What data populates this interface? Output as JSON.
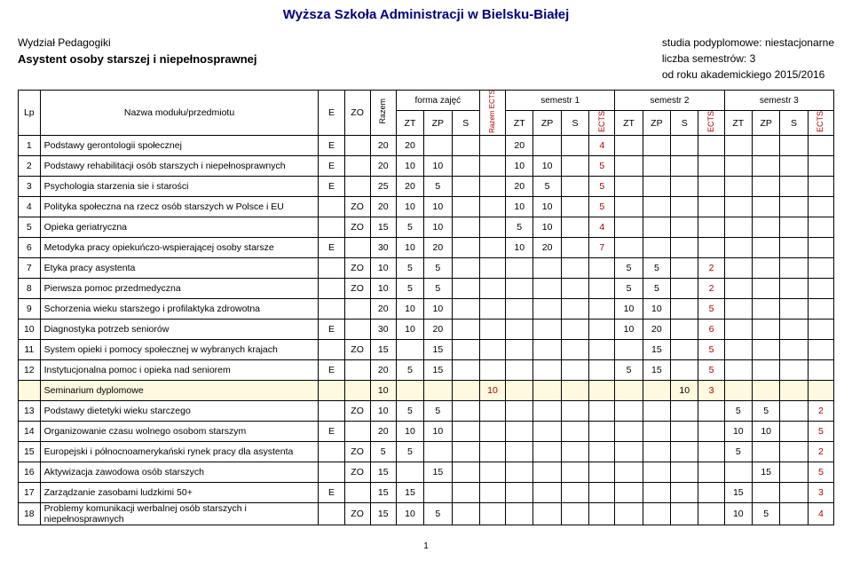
{
  "title": "Wyższa Szkoła Administracji w Bielsku-Białej",
  "meta_left": {
    "dept": "Wydział Pedagogiki",
    "program": "Asystent osoby starszej i niepełnosprawnej"
  },
  "meta_right": {
    "l1": "studia podyplomowe: niestacjonarne",
    "l2": "liczba semestrów: 3",
    "l3": "od roku akademickiego 2015/2016"
  },
  "head": {
    "lp": "Lp",
    "name": "Nazwa modułu/przedmiotu",
    "e": "E",
    "zo": "ZO",
    "razem": "Razem",
    "forma": "forma zajęć",
    "zt": "ZT",
    "zp": "ZP",
    "s": "S",
    "razem_ects": "Razem ECTS",
    "sem1": "semestr 1",
    "sem2": "semestr 2",
    "sem3": "semestr 3",
    "ects": "ECTS"
  },
  "footer_page": "1",
  "cols": {
    "lp": 22,
    "name": 280,
    "e": 26,
    "zo": 26,
    "razem": 26,
    "zt": 28,
    "zp": 28,
    "s": 28,
    "razem_ects": 26,
    "szt": 28,
    "szp": 28,
    "ss": 28,
    "sects": 26
  },
  "rows": [
    {
      "n": "1",
      "name": "Podstawy gerontologii społecznej",
      "e": "E",
      "zo": "",
      "raz": "20",
      "zt": "20",
      "zp": "",
      "s": "",
      "rects": "",
      "s1": [
        "20",
        "",
        "",
        "4"
      ],
      "s2": [
        "",
        "",
        "",
        ""
      ],
      "s3": [
        "",
        "",
        "",
        ""
      ],
      "y": 0
    },
    {
      "n": "2",
      "name": "Podstawy rehabilitacji osób starszych i niepełnosprawnych",
      "e": "E",
      "zo": "",
      "raz": "20",
      "zt": "10",
      "zp": "10",
      "s": "",
      "rects": "",
      "s1": [
        "10",
        "10",
        "",
        "5"
      ],
      "s2": [
        "",
        "",
        "",
        ""
      ],
      "s3": [
        "",
        "",
        "",
        ""
      ],
      "y": 0
    },
    {
      "n": "3",
      "name": "Psychologia starzenia sie i starości",
      "e": "E",
      "zo": "",
      "raz": "25",
      "zt": "20",
      "zp": "5",
      "s": "",
      "rects": "",
      "s1": [
        "20",
        "5",
        "",
        "5"
      ],
      "s2": [
        "",
        "",
        "",
        ""
      ],
      "s3": [
        "",
        "",
        "",
        ""
      ],
      "y": 0
    },
    {
      "n": "4",
      "name": "Polityka społeczna na rzecz osób starszych w Polsce i EU",
      "e": "",
      "zo": "ZO",
      "raz": "20",
      "zt": "10",
      "zp": "10",
      "s": "",
      "rects": "",
      "s1": [
        "10",
        "10",
        "",
        "5"
      ],
      "s2": [
        "",
        "",
        "",
        ""
      ],
      "s3": [
        "",
        "",
        "",
        ""
      ],
      "y": 0
    },
    {
      "n": "5",
      "name": "Opieka geriatryczna",
      "e": "",
      "zo": "ZO",
      "raz": "15",
      "zt": "5",
      "zp": "10",
      "s": "",
      "rects": "",
      "s1": [
        "5",
        "10",
        "",
        "4"
      ],
      "s2": [
        "",
        "",
        "",
        ""
      ],
      "s3": [
        "",
        "",
        "",
        ""
      ],
      "y": 0
    },
    {
      "n": "6",
      "name": "Metodyka pracy opiekuńczo-wspierającej osoby starsze",
      "e": "E",
      "zo": "",
      "raz": "30",
      "zt": "10",
      "zp": "20",
      "s": "",
      "rects": "",
      "s1": [
        "10",
        "20",
        "",
        "7"
      ],
      "s2": [
        "",
        "",
        "",
        ""
      ],
      "s3": [
        "",
        "",
        "",
        ""
      ],
      "y": 0
    },
    {
      "n": "7",
      "name": "Etyka pracy asystenta",
      "e": "",
      "zo": "ZO",
      "raz": "10",
      "zt": "5",
      "zp": "5",
      "s": "",
      "rects": "",
      "s1": [
        "",
        "",
        "",
        ""
      ],
      "s2": [
        "5",
        "5",
        "",
        "2"
      ],
      "s3": [
        "",
        "",
        "",
        ""
      ],
      "y": 0
    },
    {
      "n": "8",
      "name": "Pierwsza pomoc przedmedyczna",
      "e": "",
      "zo": "ZO",
      "raz": "10",
      "zt": "5",
      "zp": "5",
      "s": "",
      "rects": "",
      "s1": [
        "",
        "",
        "",
        ""
      ],
      "s2": [
        "5",
        "5",
        "",
        "2"
      ],
      "s3": [
        "",
        "",
        "",
        ""
      ],
      "y": 0
    },
    {
      "n": "9",
      "name": "Schorzenia wieku starszego i profilaktyka zdrowotna",
      "e": "",
      "zo": "",
      "raz": "20",
      "zt": "10",
      "zp": "10",
      "s": "",
      "rects": "",
      "s1": [
        "",
        "",
        "",
        ""
      ],
      "s2": [
        "10",
        "10",
        "",
        "5"
      ],
      "s3": [
        "",
        "",
        "",
        ""
      ],
      "y": 0
    },
    {
      "n": "10",
      "name": "Diagnostyka potrzeb seniorów",
      "e": "E",
      "zo": "",
      "raz": "30",
      "zt": "10",
      "zp": "20",
      "s": "",
      "rects": "",
      "s1": [
        "",
        "",
        "",
        ""
      ],
      "s2": [
        "10",
        "20",
        "",
        "6"
      ],
      "s3": [
        "",
        "",
        "",
        ""
      ],
      "y": 0
    },
    {
      "n": "11",
      "name": "System opieki i pomocy społecznej w wybranych krajach",
      "e": "",
      "zo": "ZO",
      "raz": "15",
      "zt": "",
      "zp": "15",
      "s": "",
      "rects": "",
      "s1": [
        "",
        "",
        "",
        ""
      ],
      "s2": [
        "",
        "15",
        "",
        "5"
      ],
      "s3": [
        "",
        "",
        "",
        ""
      ],
      "y": 0
    },
    {
      "n": "12",
      "name": "Instytucjonalna pomoc i opieka nad seniorem",
      "e": "E",
      "zo": "",
      "raz": "20",
      "zt": "5",
      "zp": "15",
      "s": "",
      "rects": "",
      "s1": [
        "",
        "",
        "",
        ""
      ],
      "s2": [
        "5",
        "15",
        "",
        "5"
      ],
      "s3": [
        "",
        "",
        "",
        ""
      ],
      "y": 0
    },
    {
      "n": "",
      "name": "Seminarium dyplomowe",
      "e": "",
      "zo": "",
      "raz": "10",
      "zt": "",
      "zp": "",
      "s": "",
      "rects": "10",
      "s1": [
        "",
        "",
        "",
        ""
      ],
      "s2": [
        "",
        "",
        "10",
        "3"
      ],
      "s3": [
        "",
        "",
        "",
        ""
      ],
      "y": 1
    },
    {
      "n": "13",
      "name": "Podstawy dietetyki wieku starczego",
      "e": "",
      "zo": "ZO",
      "raz": "10",
      "zt": "5",
      "zp": "5",
      "s": "",
      "rects": "",
      "s1": [
        "",
        "",
        "",
        ""
      ],
      "s2": [
        "",
        "",
        "",
        ""
      ],
      "s3": [
        "5",
        "5",
        "",
        "2"
      ],
      "y": 0
    },
    {
      "n": "14",
      "name": "Organizowanie czasu wolnego osobom starszym",
      "e": "E",
      "zo": "",
      "raz": "20",
      "zt": "10",
      "zp": "10",
      "s": "",
      "rects": "",
      "s1": [
        "",
        "",
        "",
        ""
      ],
      "s2": [
        "",
        "",
        "",
        ""
      ],
      "s3": [
        "10",
        "10",
        "",
        "5"
      ],
      "y": 0
    },
    {
      "n": "15",
      "name": "Europejski i północnoamerykański rynek pracy dla asystenta",
      "e": "",
      "zo": "ZO",
      "raz": "5",
      "zt": "5",
      "zp": "",
      "s": "",
      "rects": "",
      "s1": [
        "",
        "",
        "",
        ""
      ],
      "s2": [
        "",
        "",
        "",
        ""
      ],
      "s3": [
        "5",
        "",
        "",
        "2"
      ],
      "y": 0
    },
    {
      "n": "16",
      "name": "Aktywizacja zawodowa osób starszych",
      "e": "",
      "zo": "ZO",
      "raz": "15",
      "zt": "",
      "zp": "15",
      "s": "",
      "rects": "",
      "s1": [
        "",
        "",
        "",
        ""
      ],
      "s2": [
        "",
        "",
        "",
        ""
      ],
      "s3": [
        "",
        "15",
        "",
        "5"
      ],
      "y": 0
    },
    {
      "n": "17",
      "name": "Zarządzanie zasobami ludzkimi 50+",
      "e": "E",
      "zo": "",
      "raz": "15",
      "zt": "15",
      "zp": "",
      "s": "",
      "rects": "",
      "s1": [
        "",
        "",
        "",
        ""
      ],
      "s2": [
        "",
        "",
        "",
        ""
      ],
      "s3": [
        "15",
        "",
        "",
        "3"
      ],
      "y": 0
    },
    {
      "n": "18",
      "name": "Problemy komunikacji werbalnej osób starszych i niepełnosprawnych",
      "e": "",
      "zo": "ZO",
      "raz": "15",
      "zt": "10",
      "zp": "5",
      "s": "",
      "rects": "",
      "s1": [
        "",
        "",
        "",
        ""
      ],
      "s2": [
        "",
        "",
        "",
        ""
      ],
      "s3": [
        "10",
        "5",
        "",
        "4"
      ],
      "y": 0
    }
  ]
}
